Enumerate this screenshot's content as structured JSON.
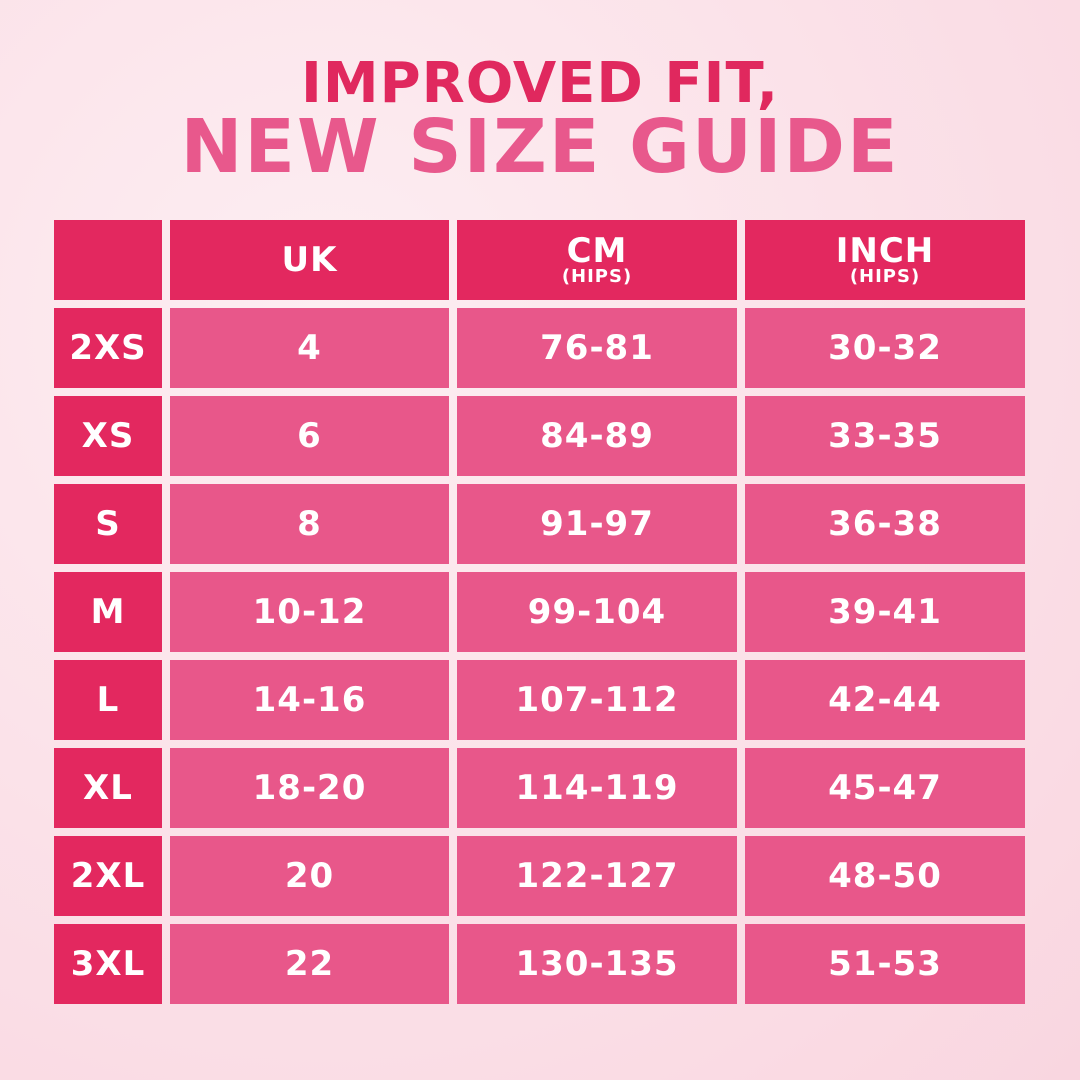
{
  "title": {
    "line1": "IMPROVED FIT,",
    "line2": "NEW SIZE GUIDE"
  },
  "colors": {
    "header": "#e3285f",
    "body_cell": "#e8578a",
    "title_line1": "#e0285e",
    "title_line2": "#e8588c",
    "background": "#fbe2e9"
  },
  "table": {
    "headers": [
      {
        "label": "",
        "sub": ""
      },
      {
        "label": "UK",
        "sub": ""
      },
      {
        "label": "CM",
        "sub": "(HIPS)"
      },
      {
        "label": "INCH",
        "sub": "(HIPS)"
      }
    ],
    "rows": [
      [
        "2XS",
        "4",
        "76-81",
        "30-32"
      ],
      [
        "XS",
        "6",
        "84-89",
        "33-35"
      ],
      [
        "S",
        "8",
        "91-97",
        "36-38"
      ],
      [
        "M",
        "10-12",
        "99-104",
        "39-41"
      ],
      [
        "L",
        "14-16",
        "107-112",
        "42-44"
      ],
      [
        "XL",
        "18-20",
        "114-119",
        "45-47"
      ],
      [
        "2XL",
        "20",
        "122-127",
        "48-50"
      ],
      [
        "3XL",
        "22",
        "130-135",
        "51-53"
      ]
    ]
  }
}
